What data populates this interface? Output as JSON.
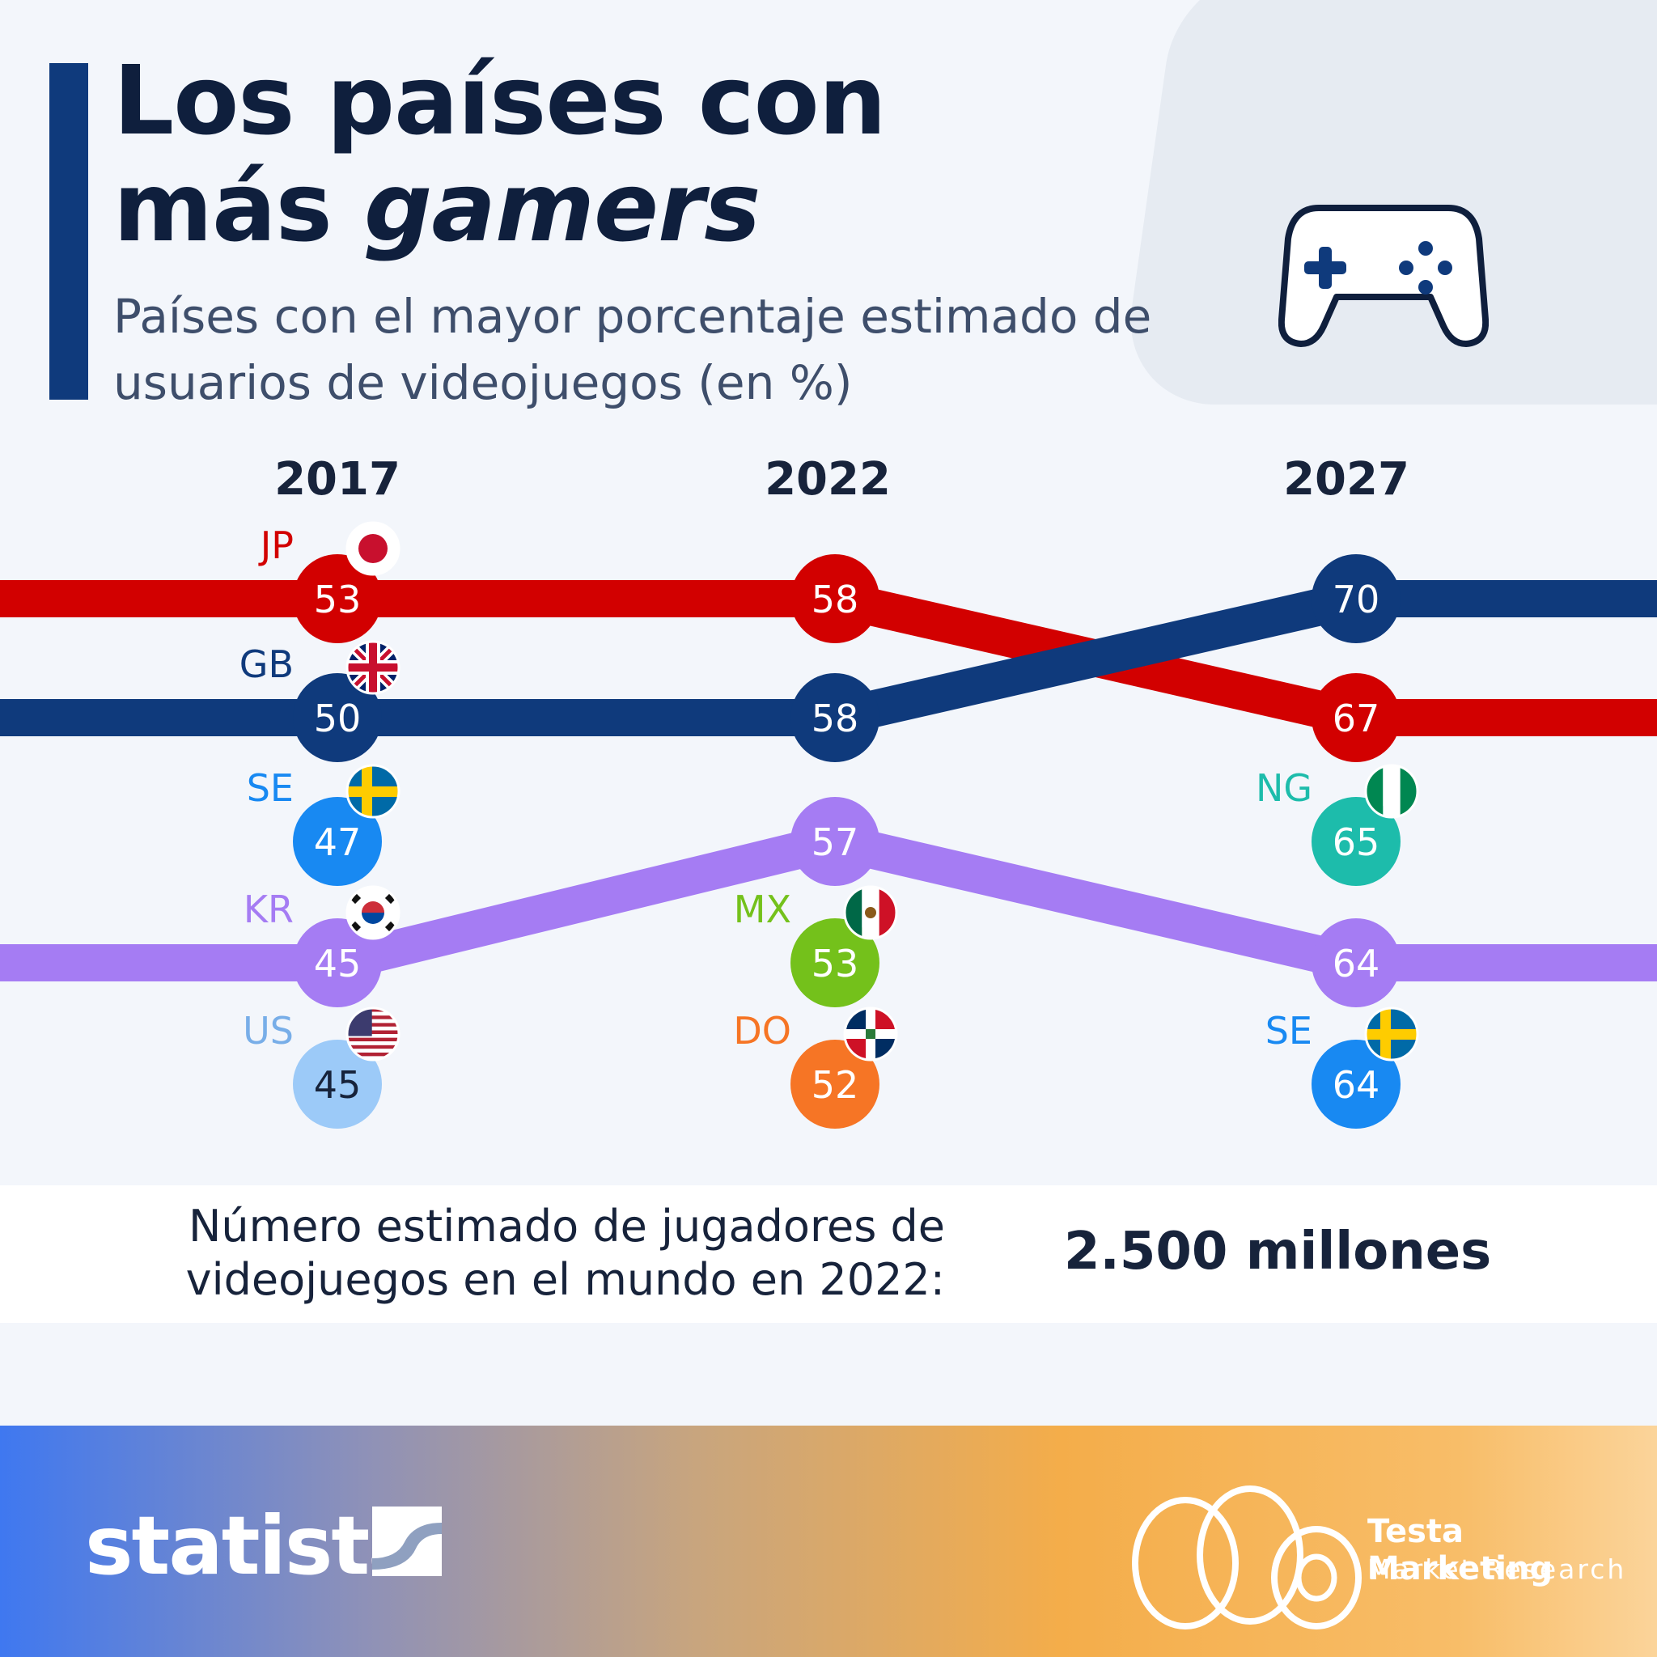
{
  "header": {
    "title_line1": "Los países con",
    "title_line2_plain": "más ",
    "title_line2_italic": "gamers",
    "subtitle": "Países con el mayor porcentaje estimado de usuarios de videojuegos (en %)",
    "icon": "gamepad-icon"
  },
  "chart_data": {
    "type": "line",
    "title": "Los países con más gamers",
    "subtitle": "Países con el mayor porcentaje estimado de usuarios de videojuegos (en %)",
    "years": [
      "2017",
      "2022",
      "2027"
    ],
    "series": [
      {
        "name": "JP",
        "color": "#d20000",
        "values": [
          53,
          58,
          67
        ]
      },
      {
        "name": "GB",
        "color": "#0f3a7c",
        "values": [
          50,
          58,
          70
        ]
      },
      {
        "name": "KR",
        "color": "#a57cf3",
        "values": [
          45,
          57,
          64
        ]
      }
    ],
    "markers": [
      {
        "year": "2017",
        "code": "JP",
        "value": 53,
        "color": "#d20000",
        "flag": "flag-jp"
      },
      {
        "year": "2017",
        "code": "GB",
        "value": 50,
        "color": "#0f3a7c",
        "flag": "flag-gb"
      },
      {
        "year": "2017",
        "code": "SE",
        "value": 47,
        "color": "#1889f2",
        "flag": "flag-se"
      },
      {
        "year": "2017",
        "code": "KR",
        "value": 45,
        "color": "#a57cf3",
        "flag": "flag-kr"
      },
      {
        "year": "2017",
        "code": "US",
        "value": 45,
        "color": "#9ccaf8",
        "flag": "flag-us"
      },
      {
        "year": "2022",
        "code": "JP",
        "value": 58,
        "color": "#d20000"
      },
      {
        "year": "2022",
        "code": "GB",
        "value": 58,
        "color": "#0f3a7c"
      },
      {
        "year": "2022",
        "code": "KR",
        "value": 57,
        "color": "#a57cf3"
      },
      {
        "year": "2022",
        "code": "MX",
        "value": 53,
        "color": "#74c11b",
        "flag": "flag-mx"
      },
      {
        "year": "2022",
        "code": "DO",
        "value": 52,
        "color": "#f67525",
        "flag": "flag-do"
      },
      {
        "year": "2027",
        "code": "GB",
        "value": 70,
        "color": "#0f3a7c"
      },
      {
        "year": "2027",
        "code": "JP",
        "value": 67,
        "color": "#d20000"
      },
      {
        "year": "2027",
        "code": "NG",
        "value": 65,
        "color": "#1dbcab",
        "flag": "flag-ng"
      },
      {
        "year": "2027",
        "code": "KR",
        "value": 64,
        "color": "#a57cf3"
      },
      {
        "year": "2027",
        "code": "SE",
        "value": 64,
        "color": "#1889f2",
        "flag": "flag-se"
      }
    ]
  },
  "stats": {
    "label_line1": "Número estimado de jugadores de",
    "label_line2": "videojuegos en el mundo en 2022:",
    "value": "2.500 millones"
  },
  "footer": {
    "brand": "statista",
    "partner_name": "Testa Marketing",
    "partner_sub": "Market Research"
  }
}
